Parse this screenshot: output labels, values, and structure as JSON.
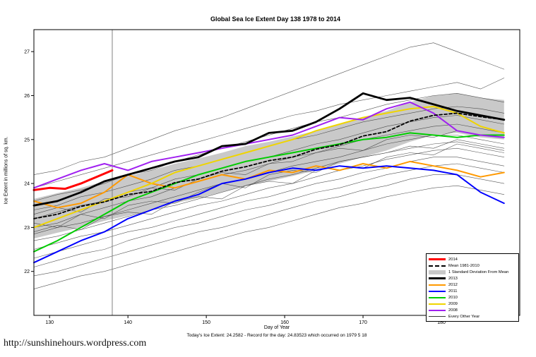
{
  "page": {
    "title": "Global Sea Ice Extent Day 138 1978 to 2014",
    "xlabel": "Day of Year",
    "ylabel": "Ice Extent in millions of sq. km.",
    "subtitle": "Today's Ice Extent: 24.2582 - Record for the day: 24.83523 which occurred on 1979 5 18",
    "footer_url": "http://sunshinehours.wordpress.com"
  },
  "chart_data": {
    "type": "line",
    "title": "Global Sea Ice Extent Day 138 1978 to 2014",
    "xlabel": "Day of Year",
    "ylabel": "Ice Extent in millions of sq. km.",
    "xlim": [
      128,
      190
    ],
    "ylim": [
      21.0,
      27.5
    ],
    "xticks": [
      130,
      140,
      150,
      160,
      170,
      180
    ],
    "yticks": [
      22,
      23,
      24,
      25,
      26,
      27
    ],
    "grid": false,
    "legend_position": "bottom-right",
    "vline_x": 138,
    "vline_color": "#808080",
    "x": [
      128,
      131,
      134,
      137,
      140,
      143,
      146,
      149,
      152,
      155,
      158,
      161,
      164,
      167,
      170,
      173,
      176,
      179,
      182,
      185,
      188
    ],
    "band": {
      "name": "1 Standard Deviation From Mean",
      "color": "#c9c9c9",
      "upper": [
        23.65,
        23.78,
        23.9,
        24.05,
        24.17,
        24.3,
        24.45,
        24.57,
        24.7,
        24.85,
        24.95,
        25.07,
        25.2,
        25.35,
        25.5,
        25.65,
        25.85,
        26.0,
        26.05,
        25.95,
        25.9
      ],
      "lower": [
        22.75,
        22.88,
        23.0,
        23.15,
        23.27,
        23.4,
        23.55,
        23.67,
        23.8,
        23.95,
        24.05,
        24.17,
        24.3,
        24.45,
        24.6,
        24.75,
        24.95,
        25.1,
        25.15,
        25.05,
        25.0
      ]
    },
    "gray_series": {
      "name": "Every Other Year",
      "color": "#3a3a3a",
      "width": 0.6,
      "lines": [
        [
          24.2,
          24.3,
          24.5,
          24.6,
          24.8,
          25.0,
          25.2,
          25.35,
          25.5,
          25.7,
          25.9,
          26.1,
          26.3,
          26.5,
          26.7,
          26.9,
          27.1,
          27.2,
          27.0,
          26.8,
          26.6
        ],
        [
          23.9,
          24.05,
          24.2,
          24.35,
          24.5,
          24.65,
          24.8,
          24.95,
          25.1,
          25.25,
          25.4,
          25.55,
          25.65,
          25.8,
          25.9,
          26.0,
          26.1,
          26.2,
          26.3,
          26.15,
          26.4
        ],
        [
          23.6,
          23.75,
          23.85,
          24.0,
          24.2,
          24.3,
          24.5,
          24.65,
          24.8,
          24.95,
          25.1,
          25.25,
          25.4,
          25.5,
          25.65,
          25.8,
          25.9,
          26.0,
          26.05,
          25.95,
          25.85
        ],
        [
          23.4,
          23.5,
          23.7,
          23.8,
          23.95,
          24.1,
          24.3,
          24.4,
          24.55,
          24.7,
          24.85,
          25.0,
          25.1,
          25.25,
          25.4,
          25.5,
          25.6,
          25.7,
          25.75,
          25.7,
          25.6
        ],
        [
          23.2,
          23.35,
          23.5,
          23.6,
          23.8,
          23.9,
          24.1,
          24.2,
          24.35,
          24.5,
          24.6,
          24.75,
          24.9,
          25.0,
          25.15,
          25.3,
          25.4,
          25.5,
          25.55,
          25.45,
          25.35
        ],
        [
          23.0,
          23.1,
          23.3,
          23.45,
          23.6,
          23.7,
          23.9,
          24.05,
          24.2,
          24.3,
          24.45,
          24.6,
          24.7,
          24.85,
          25.0,
          25.1,
          25.2,
          25.3,
          25.35,
          25.25,
          25.15
        ],
        [
          22.85,
          23.0,
          23.1,
          23.25,
          23.4,
          23.55,
          23.7,
          23.85,
          24.0,
          24.1,
          24.25,
          24.4,
          24.5,
          24.6,
          24.75,
          24.9,
          25.0,
          25.1,
          25.1,
          25.0,
          24.9
        ],
        [
          22.7,
          22.8,
          22.95,
          23.1,
          23.25,
          23.4,
          23.5,
          23.65,
          23.8,
          23.95,
          24.1,
          24.2,
          24.35,
          24.5,
          24.6,
          24.7,
          24.8,
          24.9,
          24.95,
          24.85,
          24.75
        ],
        [
          22.5,
          22.65,
          22.8,
          22.9,
          23.05,
          23.2,
          23.35,
          23.5,
          23.6,
          23.75,
          23.9,
          24.0,
          24.15,
          24.3,
          24.4,
          24.55,
          24.65,
          24.75,
          24.8,
          24.7,
          24.6
        ],
        [
          22.3,
          22.45,
          22.6,
          22.75,
          22.9,
          23.0,
          23.15,
          23.3,
          23.45,
          23.6,
          23.7,
          23.85,
          24.0,
          24.1,
          24.25,
          24.35,
          24.5,
          24.6,
          24.6,
          24.5,
          24.4
        ],
        [
          22.1,
          22.25,
          22.4,
          22.5,
          22.7,
          22.85,
          23.0,
          23.1,
          23.25,
          23.4,
          23.5,
          23.65,
          23.8,
          23.9,
          24.05,
          24.2,
          24.3,
          24.4,
          24.45,
          24.35,
          24.25
        ],
        [
          21.9,
          22.0,
          22.15,
          22.3,
          22.45,
          22.6,
          22.75,
          22.9,
          23.0,
          23.15,
          23.3,
          23.45,
          23.6,
          23.7,
          23.85,
          23.95,
          24.1,
          24.2,
          24.2,
          24.1,
          24.0
        ],
        [
          21.6,
          21.75,
          21.9,
          22.0,
          22.15,
          22.3,
          22.45,
          22.6,
          22.75,
          22.9,
          23.0,
          23.15,
          23.3,
          23.45,
          23.55,
          23.7,
          23.8,
          23.9,
          23.95,
          23.85,
          23.75
        ],
        [
          23.1,
          23.0,
          23.3,
          23.2,
          23.5,
          23.6,
          23.55,
          23.8,
          24.0,
          23.9,
          24.2,
          24.3,
          24.25,
          24.5,
          24.6,
          24.7,
          24.85,
          24.8,
          25.0,
          24.9,
          24.8
        ],
        [
          22.9,
          23.05,
          22.95,
          23.25,
          23.35,
          23.3,
          23.6,
          23.7,
          23.65,
          23.95,
          24.05,
          24.0,
          24.3,
          24.4,
          24.35,
          24.6,
          24.7,
          24.65,
          24.9,
          24.8,
          24.7
        ],
        [
          23.3,
          23.45,
          23.35,
          23.65,
          23.7,
          23.9,
          23.85,
          24.1,
          24.25,
          24.2,
          24.45,
          24.5,
          24.7,
          24.8,
          24.75,
          25.0,
          25.1,
          25.05,
          25.2,
          25.1,
          25.05
        ]
      ]
    },
    "series": [
      {
        "name": "2012",
        "color": "#ff9900",
        "width": 2,
        "values": [
          23.6,
          23.45,
          23.55,
          23.8,
          24.2,
          24.0,
          23.9,
          24.05,
          24.2,
          24.1,
          24.3,
          24.25,
          24.4,
          24.3,
          24.45,
          24.35,
          24.5,
          24.4,
          24.3,
          24.15,
          24.25
        ]
      },
      {
        "name": "2011",
        "color": "#0000ff",
        "width": 2,
        "values": [
          22.2,
          22.45,
          22.7,
          22.9,
          23.2,
          23.4,
          23.6,
          23.75,
          24.0,
          24.1,
          24.25,
          24.35,
          24.3,
          24.4,
          24.35,
          24.4,
          24.35,
          24.3,
          24.2,
          23.8,
          23.55
        ]
      },
      {
        "name": "2010",
        "color": "#00cc00",
        "width": 2,
        "values": [
          22.45,
          22.7,
          23.0,
          23.3,
          23.6,
          23.8,
          24.0,
          24.2,
          24.35,
          24.5,
          24.6,
          24.7,
          24.8,
          24.9,
          25.0,
          25.05,
          25.15,
          25.1,
          25.05,
          25.1,
          25.1
        ]
      },
      {
        "name": "2009",
        "color": "#efd400",
        "width": 2,
        "values": [
          23.0,
          23.2,
          23.4,
          23.6,
          23.8,
          24.0,
          24.25,
          24.4,
          24.55,
          24.7,
          24.85,
          25.0,
          25.2,
          25.35,
          25.5,
          25.6,
          25.7,
          25.75,
          25.6,
          25.3,
          25.15
        ]
      },
      {
        "name": "2008",
        "color": "#a020f0",
        "width": 2,
        "values": [
          23.9,
          24.1,
          24.3,
          24.45,
          24.3,
          24.5,
          24.6,
          24.7,
          24.8,
          24.9,
          25.0,
          25.1,
          25.3,
          25.5,
          25.45,
          25.7,
          25.85,
          25.6,
          25.2,
          25.1,
          25.05
        ]
      },
      {
        "name": "Mean 1981-2010",
        "color": "#000000",
        "width": 1.8,
        "dash": "4,3",
        "values": [
          23.2,
          23.3,
          23.48,
          23.58,
          23.75,
          23.82,
          24.02,
          24.1,
          24.28,
          24.38,
          24.52,
          24.6,
          24.78,
          24.88,
          25.08,
          25.18,
          25.42,
          25.55,
          25.6,
          25.52,
          25.45
        ]
      },
      {
        "name": "2013",
        "color": "#000000",
        "width": 2.8,
        "values": [
          23.5,
          23.6,
          23.8,
          24.05,
          24.2,
          24.35,
          24.5,
          24.6,
          24.85,
          24.9,
          25.15,
          25.2,
          25.4,
          25.7,
          26.05,
          25.9,
          25.95,
          25.8,
          25.65,
          25.55,
          25.45
        ]
      },
      {
        "name": "2014",
        "color": "#ff0000",
        "width": 3,
        "x": [
          128,
          130,
          132,
          134,
          136,
          138
        ],
        "values": [
          23.85,
          23.9,
          23.88,
          24.0,
          24.15,
          24.3
        ]
      }
    ],
    "legend": [
      {
        "label": "2014",
        "type": "line",
        "color": "#ff0000",
        "lw": 3
      },
      {
        "label": "Mean 1981-2010",
        "type": "dash",
        "color": "#000000",
        "lw": 2
      },
      {
        "label": "1 Standard Deviation From Mean",
        "type": "box",
        "color": "#c9c9c9"
      },
      {
        "label": "2013",
        "type": "line",
        "color": "#000000",
        "lw": 3
      },
      {
        "label": "2012",
        "type": "line",
        "color": "#ff9900",
        "lw": 2
      },
      {
        "label": "2011",
        "type": "line",
        "color": "#0000ff",
        "lw": 2
      },
      {
        "label": "2010",
        "type": "line",
        "color": "#00cc00",
        "lw": 2
      },
      {
        "label": "2009",
        "type": "line",
        "color": "#efd400",
        "lw": 2
      },
      {
        "label": "2008",
        "type": "line",
        "color": "#a020f0",
        "lw": 2
      },
      {
        "label": "Every Other Year",
        "type": "line",
        "color": "#3a3a3a",
        "lw": 1
      }
    ]
  }
}
